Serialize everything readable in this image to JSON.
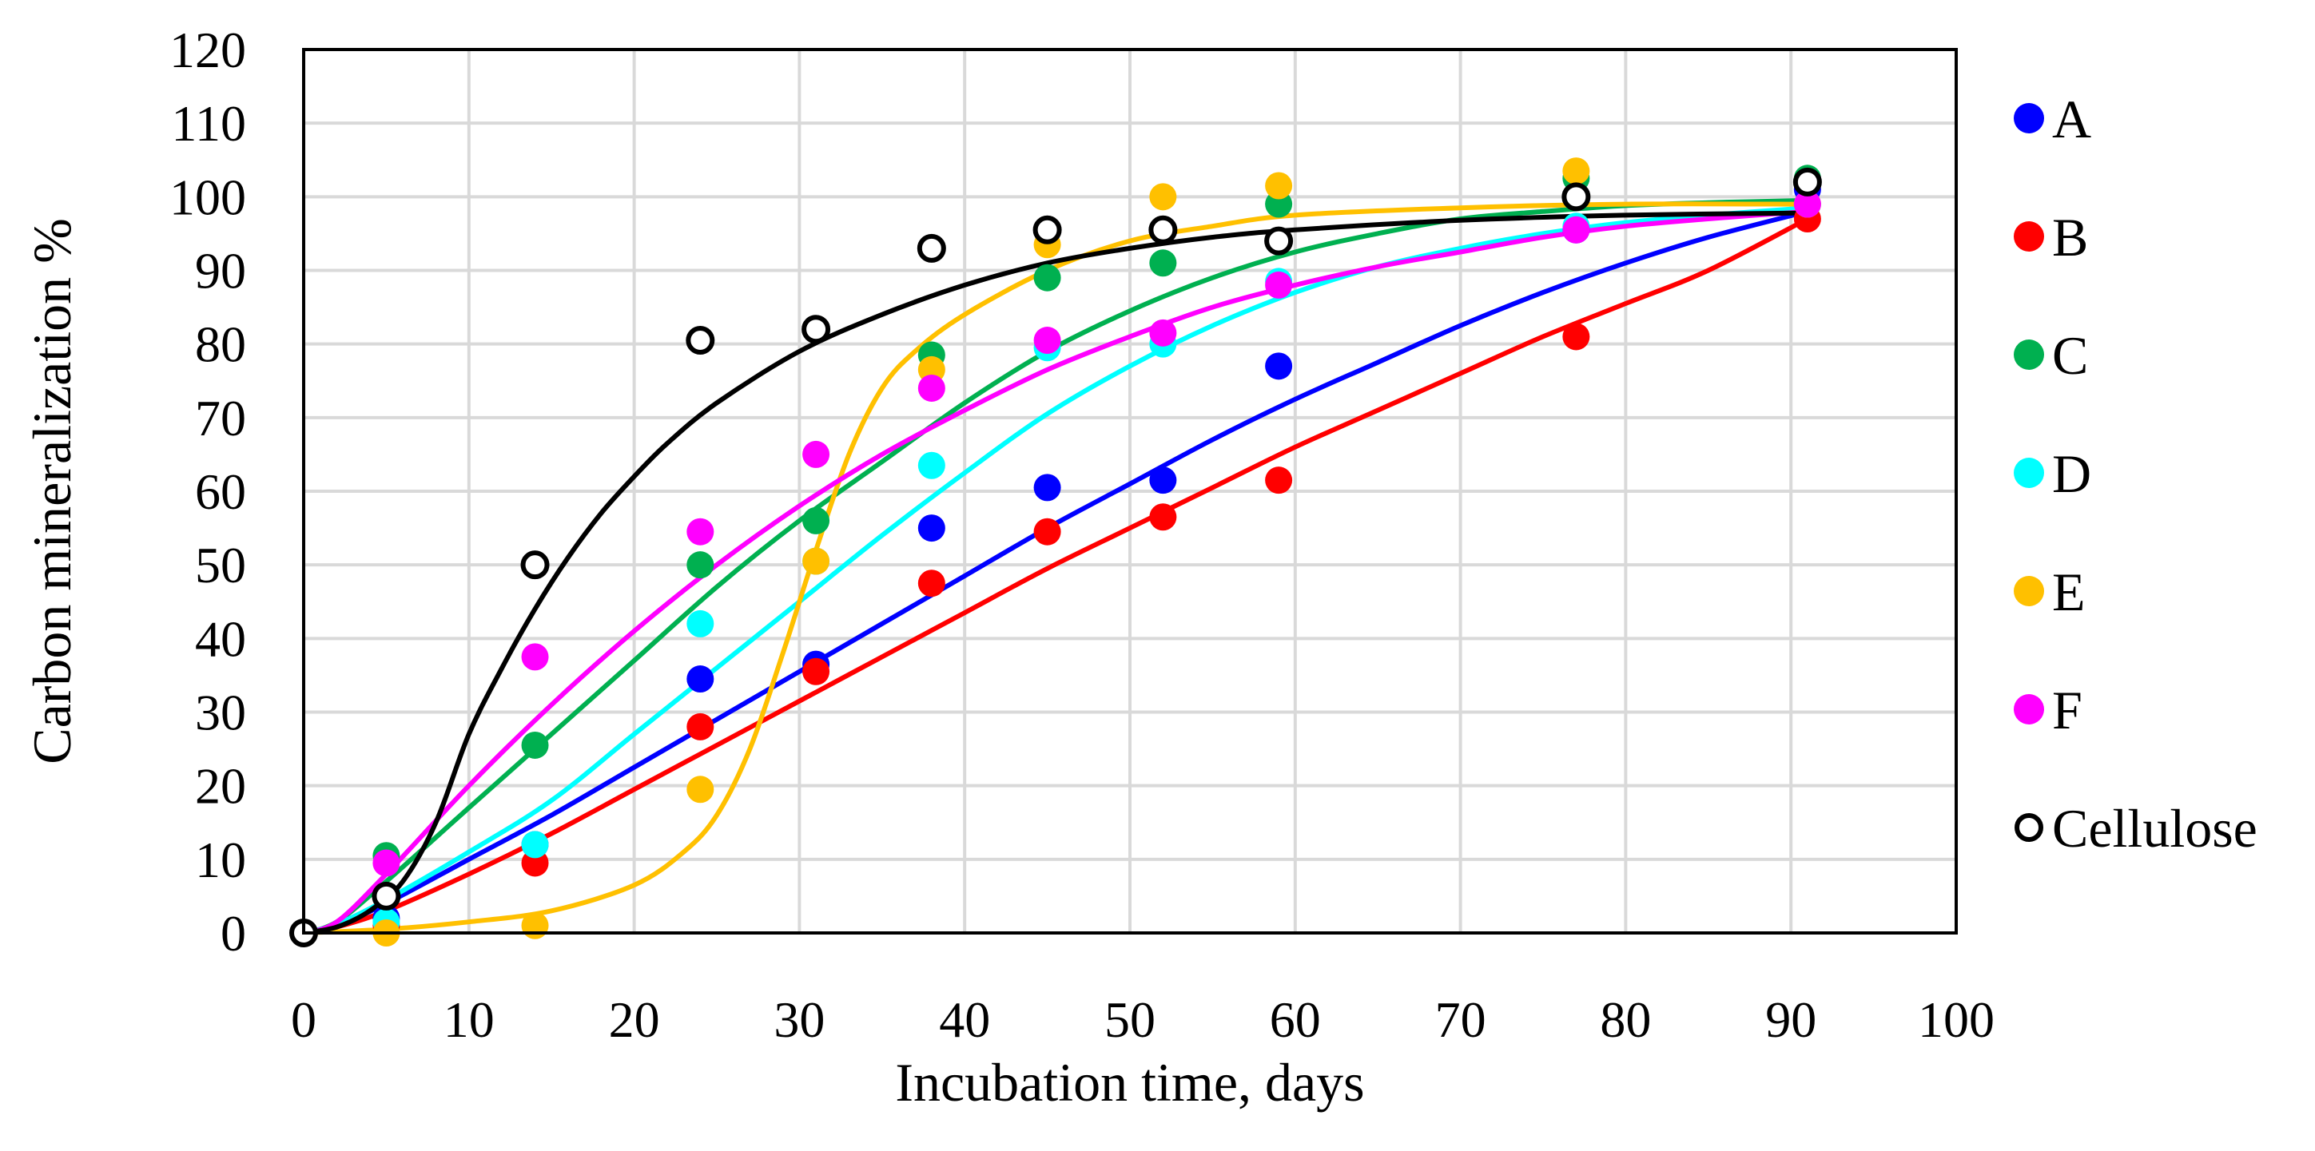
{
  "chart_data": {
    "type": "scatter",
    "title": "",
    "xlabel": "Incubation time, days",
    "ylabel": "Carbon mineralization %",
    "xlim": [
      0,
      100
    ],
    "ylim": [
      0,
      120
    ],
    "xticks": [
      0,
      10,
      20,
      30,
      40,
      50,
      60,
      70,
      80,
      90,
      100
    ],
    "yticks": [
      0,
      10,
      20,
      30,
      40,
      50,
      60,
      70,
      80,
      90,
      100,
      110,
      120
    ],
    "xtick_labels": [
      "0",
      "10",
      "20",
      "30",
      "40",
      "50",
      "60",
      "70",
      "80",
      "90",
      "100"
    ],
    "ytick_labels": [
      "0",
      "10",
      "20",
      "30",
      "40",
      "50",
      "60",
      "70",
      "80",
      "90",
      "100",
      "110",
      "120"
    ],
    "grid": true,
    "legend_position": "right",
    "x": [
      0,
      5,
      14,
      24,
      31,
      38,
      45,
      52,
      59,
      77,
      91
    ],
    "series": [
      {
        "name": "A",
        "marker": "filled",
        "color": "#0000ff",
        "values": [
          0,
          2,
          12,
          34.5,
          36.5,
          55,
          60.5,
          61.5,
          77,
          95.5,
          101
        ],
        "fit": [
          [
            0,
            0
          ],
          [
            2,
            1
          ],
          [
            5,
            4
          ],
          [
            10,
            10
          ],
          [
            15,
            16
          ],
          [
            20,
            22.5
          ],
          [
            25,
            29
          ],
          [
            30,
            35.5
          ],
          [
            35,
            42
          ],
          [
            40,
            48.5
          ],
          [
            45,
            55
          ],
          [
            50,
            61
          ],
          [
            55,
            67
          ],
          [
            60,
            72.5
          ],
          [
            65,
            77.5
          ],
          [
            70,
            82.5
          ],
          [
            75,
            87
          ],
          [
            80,
            91
          ],
          [
            85,
            94.5
          ],
          [
            91,
            98
          ]
        ]
      },
      {
        "name": "B",
        "marker": "filled",
        "color": "#ff0000",
        "values": [
          0,
          1,
          9.5,
          28,
          35.5,
          47.5,
          54.5,
          56.5,
          61.5,
          81,
          97
        ],
        "fit": [
          [
            0,
            0
          ],
          [
            2,
            0.8
          ],
          [
            5,
            3
          ],
          [
            10,
            8
          ],
          [
            15,
            13.5
          ],
          [
            20,
            19.5
          ],
          [
            25,
            25.5
          ],
          [
            30,
            31.5
          ],
          [
            35,
            37.5
          ],
          [
            40,
            43.5
          ],
          [
            45,
            49.5
          ],
          [
            50,
            55
          ],
          [
            55,
            60.5
          ],
          [
            60,
            66
          ],
          [
            65,
            71
          ],
          [
            70,
            76
          ],
          [
            75,
            81
          ],
          [
            80,
            85.5
          ],
          [
            85,
            90
          ],
          [
            91,
            97
          ]
        ]
      },
      {
        "name": "C",
        "marker": "filled",
        "color": "#00b050",
        "values": [
          0,
          10.5,
          25.5,
          50,
          56,
          78.5,
          89,
          91,
          99,
          102.5,
          102.5
        ],
        "fit": [
          [
            0,
            0
          ],
          [
            2,
            1.5
          ],
          [
            5,
            7
          ],
          [
            10,
            17
          ],
          [
            15,
            27
          ],
          [
            20,
            37
          ],
          [
            25,
            47
          ],
          [
            30,
            56
          ],
          [
            35,
            64
          ],
          [
            40,
            72
          ],
          [
            45,
            79
          ],
          [
            50,
            84.5
          ],
          [
            55,
            89
          ],
          [
            60,
            92.5
          ],
          [
            65,
            95
          ],
          [
            70,
            97
          ],
          [
            75,
            98
          ],
          [
            80,
            98.8
          ],
          [
            85,
            99.2
          ],
          [
            91,
            99.5
          ]
        ]
      },
      {
        "name": "D",
        "marker": "filled",
        "color": "#00ffff",
        "values": [
          0,
          1.5,
          12,
          42,
          50.5,
          63.5,
          79.5,
          80,
          88.5,
          96,
          99
        ],
        "fit": [
          [
            0,
            0
          ],
          [
            2,
            1.2
          ],
          [
            5,
            4.5
          ],
          [
            10,
            11
          ],
          [
            15,
            18
          ],
          [
            20,
            27
          ],
          [
            25,
            36
          ],
          [
            30,
            45
          ],
          [
            35,
            54
          ],
          [
            40,
            62.5
          ],
          [
            45,
            70.5
          ],
          [
            50,
            77
          ],
          [
            55,
            82.5
          ],
          [
            60,
            87
          ],
          [
            65,
            90.5
          ],
          [
            70,
            93
          ],
          [
            75,
            95
          ],
          [
            80,
            96.5
          ],
          [
            85,
            97.5
          ],
          [
            91,
            98.5
          ]
        ]
      },
      {
        "name": "E",
        "marker": "filled",
        "color": "#ffc000",
        "values": [
          0,
          0,
          1,
          19.5,
          50.5,
          76.5,
          93.5,
          100,
          101.5,
          103.5,
          99
        ],
        "fit": [
          [
            0,
            0
          ],
          [
            5,
            0.5
          ],
          [
            10,
            1.5
          ],
          [
            15,
            3
          ],
          [
            20,
            6.5
          ],
          [
            23,
            11
          ],
          [
            25,
            16
          ],
          [
            27,
            25
          ],
          [
            29,
            38
          ],
          [
            31,
            52
          ],
          [
            33,
            65
          ],
          [
            35,
            74
          ],
          [
            37,
            79
          ],
          [
            40,
            84
          ],
          [
            45,
            90
          ],
          [
            50,
            94
          ],
          [
            55,
            96
          ],
          [
            60,
            97.5
          ],
          [
            70,
            98.5
          ],
          [
            80,
            99
          ],
          [
            91,
            99
          ]
        ]
      },
      {
        "name": "F",
        "marker": "filled",
        "color": "#ff00ff",
        "values": [
          0,
          9.5,
          37.5,
          54.5,
          65,
          74,
          80.5,
          81.5,
          88,
          95.5,
          99
        ],
        "fit": [
          [
            0,
            0
          ],
          [
            2,
            1.5
          ],
          [
            5,
            8
          ],
          [
            10,
            20
          ],
          [
            15,
            31
          ],
          [
            20,
            41
          ],
          [
            25,
            50
          ],
          [
            30,
            58
          ],
          [
            35,
            65
          ],
          [
            40,
            71
          ],
          [
            45,
            76.5
          ],
          [
            50,
            81
          ],
          [
            55,
            85
          ],
          [
            60,
            88
          ],
          [
            65,
            90.5
          ],
          [
            70,
            92.5
          ],
          [
            75,
            94.5
          ],
          [
            80,
            96
          ],
          [
            85,
            97
          ],
          [
            91,
            98
          ]
        ]
      },
      {
        "name": "Cellulose",
        "marker": "open",
        "color": "#000000",
        "values": [
          0,
          5,
          50,
          80.5,
          82,
          93,
          95.5,
          95.5,
          94,
          100,
          102
        ],
        "fit": [
          [
            0,
            0
          ],
          [
            2,
            0.8
          ],
          [
            4,
            3
          ],
          [
            6,
            7
          ],
          [
            8,
            15
          ],
          [
            10,
            27
          ],
          [
            12,
            36
          ],
          [
            14,
            44
          ],
          [
            16,
            51
          ],
          [
            18,
            57
          ],
          [
            20,
            62
          ],
          [
            22,
            66.5
          ],
          [
            25,
            72
          ],
          [
            30,
            79
          ],
          [
            35,
            84
          ],
          [
            40,
            88
          ],
          [
            45,
            91
          ],
          [
            50,
            93
          ],
          [
            55,
            94.5
          ],
          [
            60,
            95.5
          ],
          [
            70,
            96.8
          ],
          [
            80,
            97.5
          ],
          [
            91,
            97.8
          ]
        ]
      }
    ]
  }
}
